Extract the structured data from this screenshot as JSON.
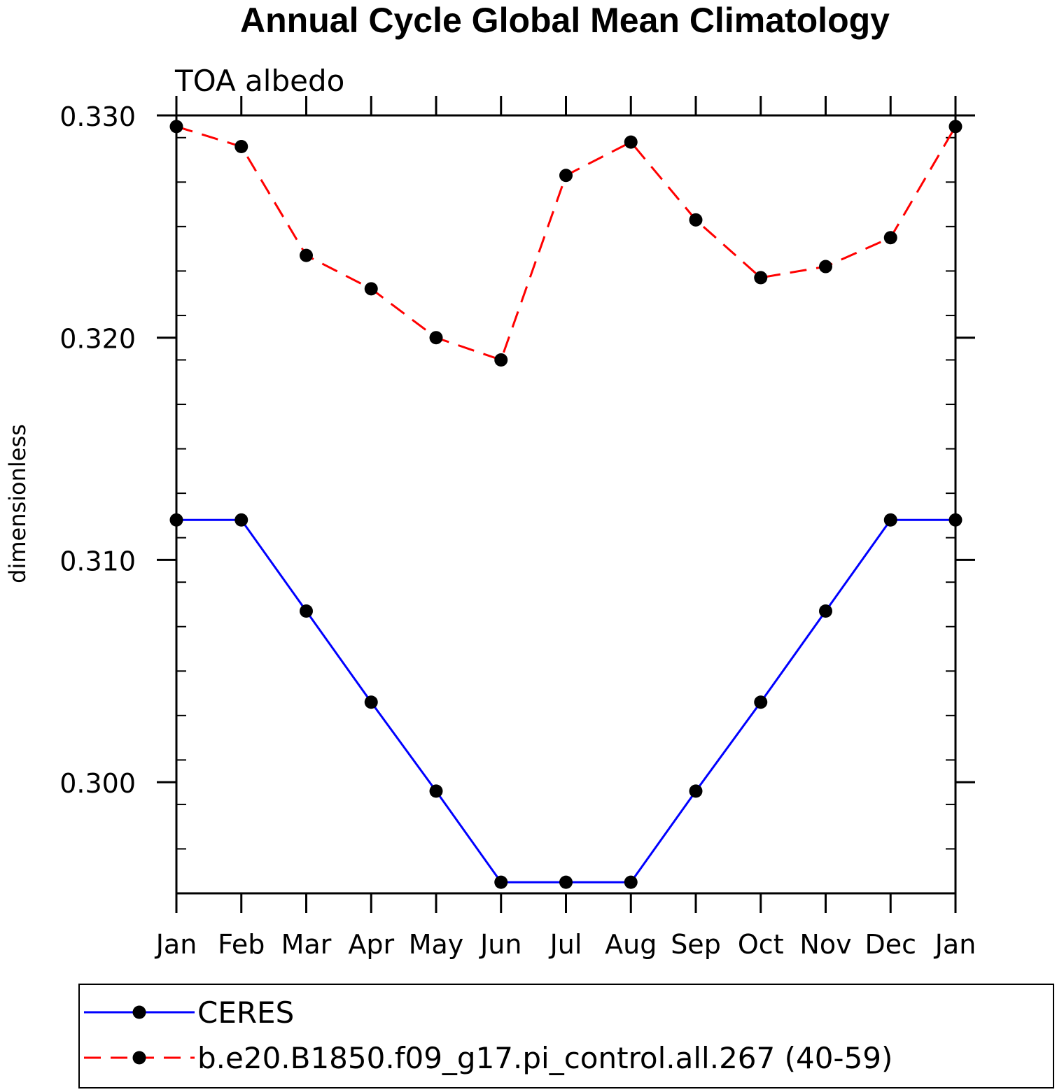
{
  "chart_data": {
    "type": "line",
    "title": "Annual Cycle Global Mean Climatology",
    "subtitle": "TOA albedo",
    "xlabel": "",
    "ylabel": "dimensionless",
    "categories": [
      "Jan",
      "Feb",
      "Mar",
      "Apr",
      "May",
      "Jun",
      "Jul",
      "Aug",
      "Sep",
      "Oct",
      "Nov",
      "Dec",
      "Jan"
    ],
    "ylim": [
      0.295,
      0.33
    ],
    "yticks": [
      {
        "value": 0.3,
        "label": "0.300"
      },
      {
        "value": 0.31,
        "label": "0.310"
      },
      {
        "value": 0.32,
        "label": "0.320"
      },
      {
        "value": 0.33,
        "label": "0.330"
      }
    ],
    "yminor_step": 0.002,
    "grid": false,
    "legend_position": "bottom",
    "series": [
      {
        "name": "CERES",
        "color": "#0000ff",
        "dash": "solid",
        "values": [
          0.3118,
          0.3118,
          0.3077,
          0.3036,
          0.2996,
          0.2955,
          0.2955,
          0.2955,
          0.2996,
          0.3036,
          0.3077,
          0.3118,
          0.3118
        ]
      },
      {
        "name": "b.e20.B1850.f09_g17.pi_control.all.267 (40-59)",
        "color": "#ff0000",
        "dash": "dashed",
        "values": [
          0.3295,
          0.3286,
          0.3237,
          0.3222,
          0.32,
          0.319,
          0.3273,
          0.3288,
          0.3253,
          0.3227,
          0.3232,
          0.3245,
          0.3295
        ]
      }
    ]
  }
}
